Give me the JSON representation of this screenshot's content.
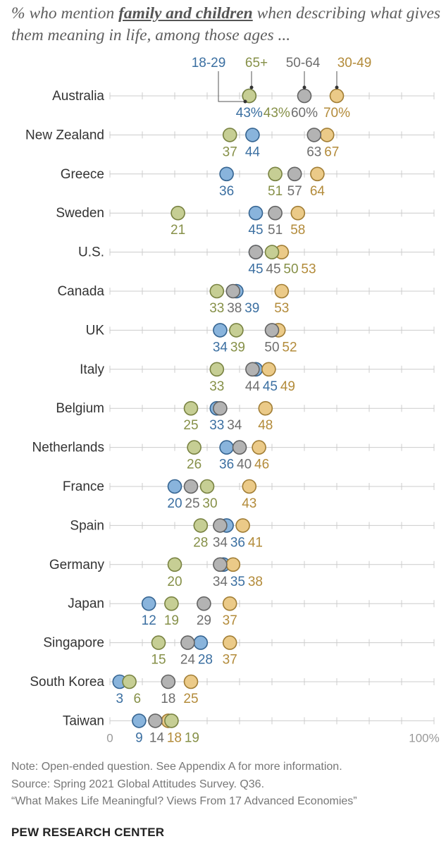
{
  "title": {
    "prefix": "% who mention ",
    "emphasis": "family and children",
    "suffix": " when describing what gives them meaning in life, among those ages ..."
  },
  "colors": {
    "18-29": "#4a8bc9",
    "30-49": "#e0ae48",
    "50-64": "#8a8a8a",
    "65+": "#a7b45a",
    "line": "#cccccc"
  },
  "legend": [
    "18-29",
    "65+",
    "50-64",
    "30-49"
  ],
  "chart_data": {
    "type": "scatter",
    "xlim": [
      0,
      100
    ],
    "tick_labels": [
      "0",
      "100%"
    ],
    "series_order": [
      "18-29",
      "30-49",
      "50-64",
      "65+"
    ],
    "rows": [
      {
        "country": "Australia",
        "values": {
          "18-29": 43,
          "30-49": 70,
          "50-64": 60,
          "65+": 43
        },
        "labels": [
          "43%",
          "43%",
          "60%",
          "70%"
        ]
      },
      {
        "country": "New Zealand",
        "values": {
          "18-29": 44,
          "30-49": 67,
          "50-64": 63,
          "65+": 37
        },
        "labels": [
          "37",
          "44",
          "63",
          "67"
        ]
      },
      {
        "country": "Greece",
        "values": {
          "18-29": 36,
          "30-49": 64,
          "50-64": 57,
          "65+": 51
        },
        "labels": [
          "36",
          "51",
          "57",
          "64"
        ]
      },
      {
        "country": "Sweden",
        "values": {
          "18-29": 45,
          "30-49": 58,
          "50-64": 51,
          "65+": 21
        },
        "labels": [
          "21",
          "45",
          "51",
          "58"
        ]
      },
      {
        "country": "U.S.",
        "values": {
          "18-29": 45,
          "30-49": 53,
          "50-64": 45,
          "65+": 50
        },
        "labels": [
          "45",
          "45",
          "50",
          "53"
        ]
      },
      {
        "country": "Canada",
        "values": {
          "18-29": 39,
          "30-49": 53,
          "50-64": 38,
          "65+": 33
        },
        "labels": [
          "33",
          "38",
          "39",
          "53"
        ]
      },
      {
        "country": "UK",
        "values": {
          "18-29": 34,
          "30-49": 52,
          "50-64": 50,
          "65+": 39
        },
        "labels": [
          "34",
          "39",
          "50",
          "52"
        ]
      },
      {
        "country": "Italy",
        "values": {
          "18-29": 45,
          "30-49": 49,
          "50-64": 44,
          "65+": 33
        },
        "labels": [
          "33",
          "44",
          "45",
          "49"
        ]
      },
      {
        "country": "Belgium",
        "values": {
          "18-29": 33,
          "30-49": 48,
          "50-64": 34,
          "65+": 25
        },
        "labels": [
          "25",
          "33",
          "34",
          "48"
        ]
      },
      {
        "country": "Netherlands",
        "values": {
          "18-29": 36,
          "30-49": 46,
          "50-64": 40,
          "65+": 26
        },
        "labels": [
          "26",
          "36",
          "40",
          "46"
        ]
      },
      {
        "country": "France",
        "values": {
          "18-29": 20,
          "30-49": 43,
          "50-64": 25,
          "65+": 30
        },
        "labels": [
          "20",
          "25",
          "30",
          "43"
        ]
      },
      {
        "country": "Spain",
        "values": {
          "18-29": 36,
          "30-49": 41,
          "50-64": 34,
          "65+": 28
        },
        "labels": [
          "28",
          "34",
          "36",
          "41"
        ]
      },
      {
        "country": "Germany",
        "values": {
          "18-29": 35,
          "30-49": 38,
          "50-64": 34,
          "65+": 20
        },
        "labels": [
          "20",
          "34",
          "35",
          "38"
        ]
      },
      {
        "country": "Japan",
        "values": {
          "18-29": 12,
          "30-49": 37,
          "50-64": 29,
          "65+": 19
        },
        "labels": [
          "12",
          "19",
          "29",
          "37"
        ]
      },
      {
        "country": "Singapore",
        "values": {
          "18-29": 28,
          "30-49": 37,
          "50-64": 24,
          "65+": 15
        },
        "labels": [
          "15",
          "24",
          "28",
          "37"
        ]
      },
      {
        "country": "South Korea",
        "values": {
          "18-29": 3,
          "30-49": 25,
          "50-64": 18,
          "65+": 6
        },
        "labels": [
          "3",
          "6",
          "18",
          "25"
        ]
      },
      {
        "country": "Taiwan",
        "values": {
          "18-29": 9,
          "30-49": 18,
          "50-64": 14,
          "65+": 19
        },
        "labels": [
          "9",
          "14",
          "18",
          "19"
        ]
      }
    ]
  },
  "notes": [
    "Note: Open-ended question. See Appendix A for more information.",
    "Source: Spring 2021 Global Attitudes Survey. Q36.",
    "“What Makes Life Meaningful? Views From 17 Advanced Economies”"
  ],
  "brand": "PEW RESEARCH CENTER"
}
